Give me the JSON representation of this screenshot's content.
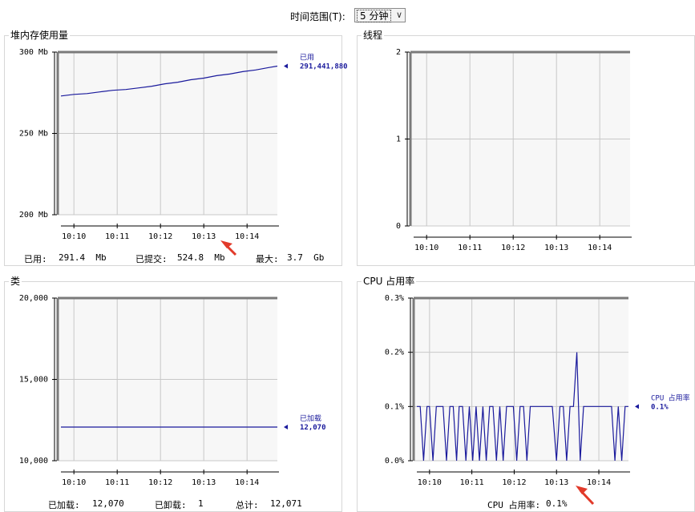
{
  "toolbar": {
    "time_range_label": "时间范围(T):",
    "time_range_value": "5 分钟"
  },
  "colors": {
    "series": "#1a1a9c",
    "grid": "#c8c8c8",
    "plot_bg": "#f7f7f7",
    "frame": "#7a7a7a",
    "annotation_arrow": "#e23a2a"
  },
  "panels": {
    "heap": {
      "title": "堆内存使用量",
      "legend_name": "已用",
      "legend_value": "291,441,880",
      "footer": {
        "used_label": "已用:",
        "used_value": "291.4  Mb",
        "committed_label": "已提交:",
        "committed_value": "524.8  Mb",
        "max_label": "最大:",
        "max_value": "3.7  Gb"
      }
    },
    "threads": {
      "title": "线程"
    },
    "classes": {
      "title": "类",
      "legend_name": "已加载",
      "legend_value": "12,070",
      "footer": {
        "loaded_label": "已加载:",
        "loaded_value": "12,070",
        "unloaded_label": "已卸载:",
        "unloaded_value": "1",
        "total_label": "总计:",
        "total_value": "12,071"
      }
    },
    "cpu": {
      "title": "CPU 占用率",
      "legend_name": "CPU 占用率",
      "legend_value": "0.1%",
      "footer": {
        "label": "CPU 占用率:",
        "value": "0.1%"
      }
    }
  },
  "chart_data": [
    {
      "id": "heap",
      "type": "line",
      "ylim": [
        200,
        300
      ],
      "yticks": [
        200,
        250,
        300
      ],
      "ytick_labels": [
        "200 Mb",
        "250 Mb",
        "300 Mb"
      ],
      "xlim": [
        0,
        5
      ],
      "xticks": [
        0.3,
        1.3,
        2.3,
        3.3,
        4.3
      ],
      "xtick_labels": [
        "10:10",
        "10:11",
        "10:12",
        "10:13",
        "10:14"
      ],
      "series": [
        {
          "name": "已用",
          "x": [
            0,
            0.3,
            0.6,
            0.9,
            1.2,
            1.5,
            1.8,
            2.1,
            2.4,
            2.7,
            3.0,
            3.3,
            3.6,
            3.9,
            4.2,
            4.5,
            4.8,
            5.0
          ],
          "y": [
            273,
            274,
            274.5,
            275.5,
            276.5,
            277,
            278,
            279,
            280.5,
            281.5,
            283,
            284,
            285.5,
            286.5,
            288,
            289,
            290.5,
            291.4
          ]
        }
      ]
    },
    {
      "id": "threads",
      "type": "line",
      "ylim": [
        0,
        2
      ],
      "yticks": [
        0,
        1,
        2
      ],
      "ytick_labels": [
        "0",
        "1",
        "2"
      ],
      "xlim": [
        0,
        5
      ],
      "xticks": [
        0.3,
        1.3,
        2.3,
        3.3,
        4.3
      ],
      "xtick_labels": [
        "10:10",
        "10:11",
        "10:12",
        "10:13",
        "10:14"
      ],
      "series": []
    },
    {
      "id": "classes",
      "type": "line",
      "ylim": [
        10000,
        20000
      ],
      "yticks": [
        10000,
        15000,
        20000
      ],
      "ytick_labels": [
        "10,000",
        "15,000",
        "20,000"
      ],
      "xlim": [
        0,
        5
      ],
      "xticks": [
        0.3,
        1.3,
        2.3,
        3.3,
        4.3
      ],
      "xtick_labels": [
        "10:10",
        "10:11",
        "10:12",
        "10:13",
        "10:14"
      ],
      "series": [
        {
          "name": "已加载",
          "x": [
            0,
            5
          ],
          "y": [
            12070,
            12070
          ]
        }
      ]
    },
    {
      "id": "cpu",
      "type": "line",
      "ylim": [
        0,
        0.3
      ],
      "yticks": [
        0,
        0.1,
        0.2,
        0.3
      ],
      "ytick_labels": [
        "0.0%",
        "0.1%",
        "0.2%",
        "0.3%"
      ],
      "xlim": [
        0,
        5
      ],
      "xticks": [
        0.3,
        1.3,
        2.3,
        3.3,
        4.3
      ],
      "xtick_labels": [
        "10:10",
        "10:11",
        "10:12",
        "10:13",
        "10:14"
      ],
      "series": [
        {
          "name": "CPU 占用率",
          "x": [
            0,
            0.08,
            0.16,
            0.24,
            0.3,
            0.38,
            0.46,
            0.54,
            0.62,
            0.7,
            0.78,
            0.86,
            0.94,
            1.0,
            1.08,
            1.16,
            1.24,
            1.32,
            1.4,
            1.48,
            1.56,
            1.64,
            1.72,
            1.8,
            1.88,
            1.96,
            2.04,
            2.12,
            2.2,
            2.28,
            2.36,
            2.44,
            2.52,
            2.6,
            2.68,
            2.76,
            2.84,
            2.92,
            3.0,
            3.1,
            3.2,
            3.3,
            3.38,
            3.46,
            3.54,
            3.62,
            3.7,
            3.78,
            3.86,
            3.94,
            4.02,
            4.1,
            4.2,
            4.3,
            4.4,
            4.5,
            4.6,
            4.68,
            4.76,
            4.84,
            4.92,
            5.0
          ],
          "y": [
            0.1,
            0.1,
            0.0,
            0.1,
            0.1,
            0.0,
            0.1,
            0.1,
            0.1,
            0.0,
            0.1,
            0.1,
            0.0,
            0.1,
            0.1,
            0.0,
            0.1,
            0.0,
            0.1,
            0.0,
            0.1,
            0.0,
            0.1,
            0.1,
            0.0,
            0.1,
            0.0,
            0.1,
            0.1,
            0.1,
            0.0,
            0.1,
            0.1,
            0.0,
            0.1,
            0.1,
            0.1,
            0.1,
            0.1,
            0.1,
            0.1,
            0.0,
            0.1,
            0.1,
            0.0,
            0.1,
            0.1,
            0.2,
            0.0,
            0.1,
            0.1,
            0.1,
            0.1,
            0.1,
            0.1,
            0.1,
            0.1,
            0.0,
            0.1,
            0.0,
            0.1,
            0.1
          ]
        }
      ]
    }
  ]
}
